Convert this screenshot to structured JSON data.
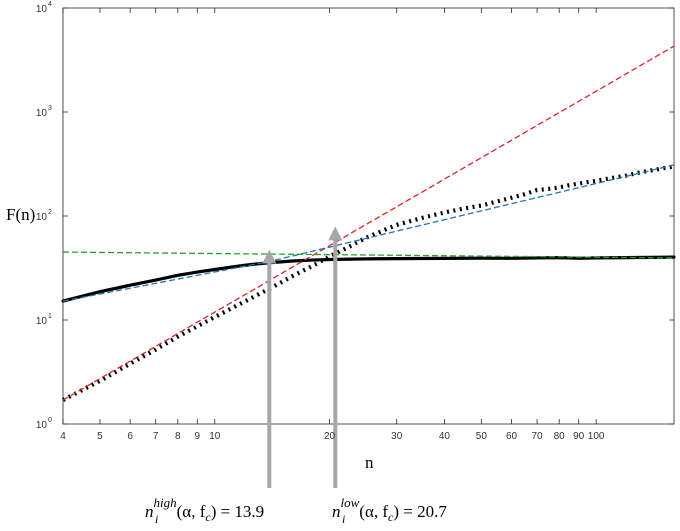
{
  "chart_data": {
    "type": "line",
    "title": "",
    "xlabel": "n",
    "ylabel": "F(n)",
    "xscale": "log",
    "yscale": "log",
    "xlim": [
      4,
      160
    ],
    "ylim": [
      1,
      10000
    ],
    "grid": false,
    "x_ticks": [
      4,
      5,
      6,
      7,
      8,
      9,
      10,
      20,
      30,
      40,
      50,
      60,
      70,
      80,
      90,
      100
    ],
    "x_tick_labels": [
      "4",
      "5",
      "6",
      "7",
      "8",
      "9",
      "10",
      "20",
      "30",
      "40",
      "50",
      "60",
      "70",
      "80",
      "90",
      "100"
    ],
    "y_ticks": [
      1,
      10,
      100,
      1000,
      10000
    ],
    "y_tick_labels": [
      "10",
      "10",
      "10",
      "10",
      "10"
    ],
    "y_tick_exponents": [
      "0",
      "1",
      "2",
      "3",
      "4"
    ],
    "series": [
      {
        "style": "solid",
        "color": "#000000",
        "x": [
          4,
          5,
          6,
          7,
          8,
          9,
          10,
          11,
          12,
          13,
          14,
          16,
          18,
          20,
          25,
          30,
          40,
          50,
          60,
          70,
          80,
          90,
          100,
          120,
          140,
          160
        ],
        "y": [
          15.2,
          18.7,
          21.6,
          24.2,
          26.9,
          28.9,
          30.6,
          32.2,
          33.6,
          34.7,
          35.6,
          36.9,
          37.7,
          38.2,
          38.7,
          38.9,
          39.1,
          39.3,
          39.2,
          39.5,
          39.8,
          39.2,
          39.6,
          39.8,
          40.0,
          40.2
        ]
      },
      {
        "style": "dotted",
        "color": "#000000",
        "x": [
          4,
          5,
          6,
          7,
          8,
          9,
          10,
          11,
          12,
          13,
          14,
          16,
          18,
          20,
          22,
          25,
          28,
          30,
          35,
          40,
          45,
          50,
          55,
          60,
          65,
          70,
          75,
          80,
          85,
          90,
          95,
          100,
          110,
          120,
          130,
          140,
          150,
          160
        ],
        "y": [
          1.7,
          2.6,
          3.8,
          5.2,
          6.9,
          8.7,
          10.7,
          12.8,
          15.1,
          17.6,
          20.2,
          26.5,
          33.0,
          40.8,
          48.5,
          62.0,
          74.0,
          82.0,
          96.0,
          108.0,
          118.0,
          126.0,
          138.0,
          150.0,
          162.0,
          178.0,
          182.0,
          188.0,
          198.0,
          205.0,
          212.0,
          218.0,
          232.0,
          245.0,
          262.0,
          275.0,
          288.0,
          300.0
        ]
      },
      {
        "style": "dashed",
        "color": "#d62728",
        "x": [
          4,
          160
        ],
        "y": [
          1.7,
          4300
        ]
      },
      {
        "style": "dashed",
        "color": "#1f77b4",
        "x": [
          4,
          13.9,
          160
        ],
        "y": [
          15.2,
          36.5,
          310
        ]
      },
      {
        "style": "dashed",
        "color": "#2ca02c",
        "x": [
          4,
          160
        ],
        "y": [
          45,
          39.5
        ]
      }
    ],
    "annotations": [
      {
        "x": 13.9,
        "base": "n",
        "sub": "i",
        "sup": "high",
        "suffix": "(α, f",
        "suffix_sub": "c",
        "close": ") = 13.9"
      },
      {
        "x": 20.7,
        "base": "n",
        "sub": "i",
        "sup": "low",
        "suffix": "(α, f",
        "suffix_sub": "c",
        "close": ") = 20.7"
      }
    ]
  }
}
